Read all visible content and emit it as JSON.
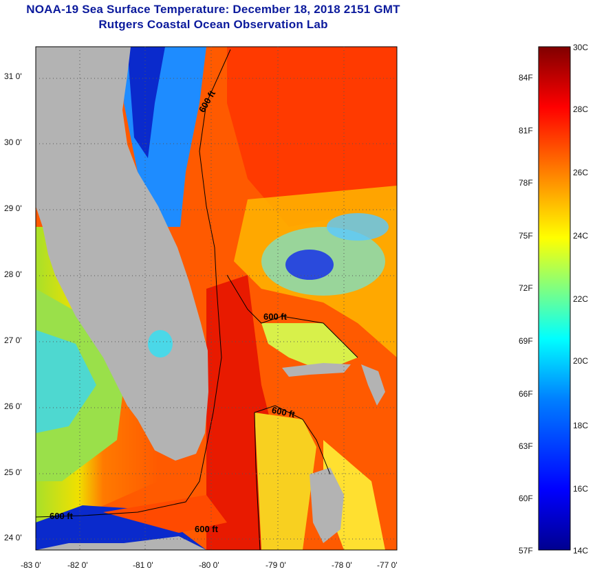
{
  "header": {
    "title": "NOAA-19 Sea Surface Temperature:  December 18, 2018 2151 GMT",
    "subtitle": "Rutgers Coastal Ocean Observation Lab"
  },
  "map": {
    "lat_labels": [
      "31 0'",
      "30 0'",
      "29 0'",
      "28 0'",
      "27 0'",
      "26 0'",
      "25 0'",
      "24 0'"
    ],
    "lon_labels": [
      "-83 0'",
      "-82 0'",
      "-81 0'",
      "-80 0'",
      "-79 0'",
      "-78 0'",
      "-77 0'"
    ],
    "contour_label": "600 ft",
    "land_color": "#b3b3b3"
  },
  "colorbar": {
    "celsius_labels": [
      "30C",
      "28C",
      "26C",
      "24C",
      "22C",
      "20C",
      "18C",
      "16C",
      "14C"
    ],
    "fahrenheit_labels": [
      "84F",
      "81F",
      "78F",
      "75F",
      "72F",
      "69F",
      "66F",
      "63F",
      "60F",
      "57F"
    ],
    "colors": [
      "#00008f",
      "#0000ff",
      "#0080ff",
      "#00ffff",
      "#80ff80",
      "#ffff00",
      "#ff8000",
      "#ff0000",
      "#800000"
    ]
  }
}
